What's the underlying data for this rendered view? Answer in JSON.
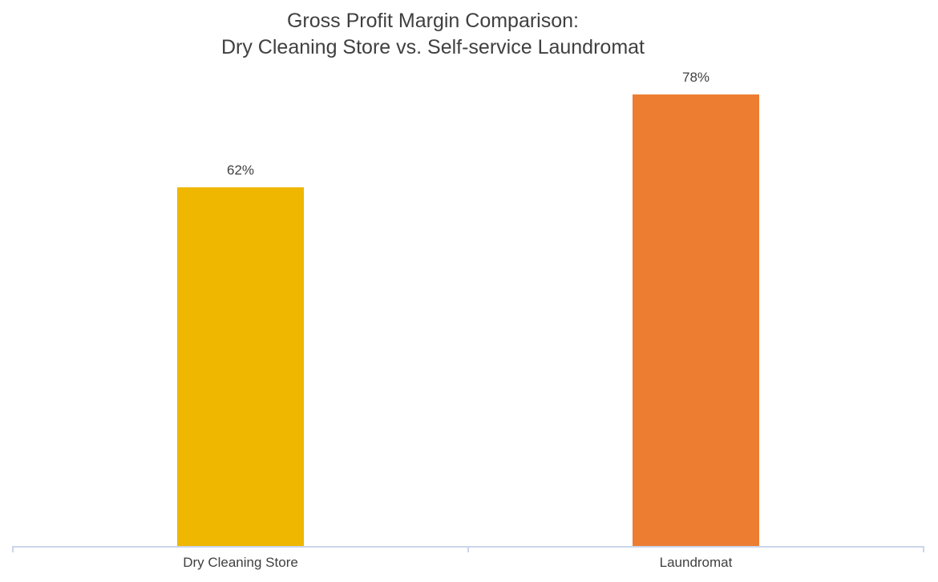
{
  "title": {
    "line1": "Gross Profit Margin Comparison:",
    "line2": "Dry Cleaning Store vs. Self-service Laundromat"
  },
  "chart_data": {
    "type": "bar",
    "categories": [
      "Dry Cleaning Store",
      "Laundromat"
    ],
    "values": [
      62,
      78
    ],
    "value_labels": [
      "62%",
      "78%"
    ],
    "series": [
      {
        "name": "Gross Profit Margin",
        "values": [
          62,
          78
        ]
      }
    ],
    "title": "Gross Profit Margin Comparison: Dry Cleaning Store vs. Self-service Laundromat",
    "xlabel": "",
    "ylabel": "",
    "ylim": [
      0,
      80
    ],
    "grid": false,
    "legend": false,
    "y_axis_visible": false,
    "bar_colors": [
      "#EFB700",
      "#ED7D31"
    ],
    "axis_line_color": "#CBD5EA",
    "text_color": "#404040"
  }
}
